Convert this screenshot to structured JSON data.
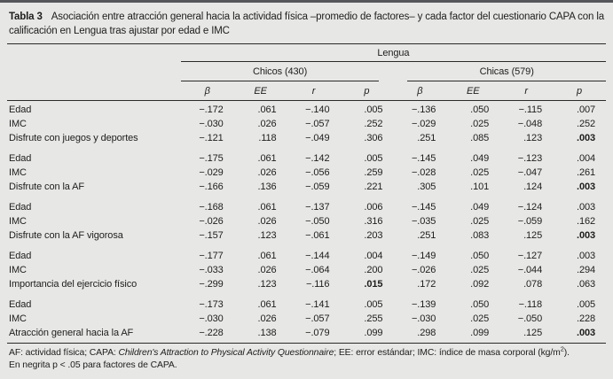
{
  "colors": {
    "page_background": "#e7e8e5",
    "top_bar": "#55565a",
    "rule": "#2a2a2a",
    "text": "#1d1d1d"
  },
  "table": {
    "id_label": "Tabla 3",
    "title": "Asociación entre atracción general hacia la actividad física –promedio de factores– y cada factor del cuestionario CAPA con la calificación en Lengua tras ajustar por edad e IMC",
    "span_header": "Lengua",
    "groups": [
      {
        "label": "Chicos (430)"
      },
      {
        "label": "Chicas (579)"
      }
    ],
    "col_headers": [
      "β",
      "EE",
      "r",
      "p",
      "β",
      "EE",
      "r",
      "p"
    ],
    "sections": [
      {
        "rows": [
          {
            "label": "Edad",
            "values": [
              "−.172",
              ".061",
              "−.140",
              ".005",
              "−.136",
              ".050",
              "−.115",
              ".007"
            ],
            "bold": []
          },
          {
            "label": "IMC",
            "values": [
              "−.030",
              ".026",
              "−.057",
              ".252",
              "−.029",
              ".025",
              "−.048",
              ".252"
            ],
            "bold": []
          },
          {
            "label": "Disfrute con juegos y deportes",
            "values": [
              "−.121",
              ".118",
              "−.049",
              ".306",
              ".251",
              ".085",
              ".123",
              ".003"
            ],
            "bold": [
              7
            ]
          }
        ]
      },
      {
        "rows": [
          {
            "label": "Edad",
            "values": [
              "−.175",
              ".061",
              "−.142",
              ".005",
              "−.145",
              ".049",
              "−.123",
              ".004"
            ],
            "bold": []
          },
          {
            "label": "IMC",
            "values": [
              "−.029",
              ".026",
              "−.056",
              ".259",
              "−.028",
              ".025",
              "−.047",
              ".261"
            ],
            "bold": []
          },
          {
            "label": "Disfrute con la AF",
            "values": [
              "−.166",
              ".136",
              "−.059",
              ".221",
              ".305",
              ".101",
              ".124",
              ".003"
            ],
            "bold": [
              7
            ]
          }
        ]
      },
      {
        "rows": [
          {
            "label": "Edad",
            "values": [
              "−.168",
              ".061",
              "−.137",
              ".006",
              "−.145",
              ".049",
              "−.124",
              ".003"
            ],
            "bold": []
          },
          {
            "label": "IMC",
            "values": [
              "−.026",
              ".026",
              "−.050",
              ".316",
              "−.035",
              ".025",
              "−.059",
              ".162"
            ],
            "bold": []
          },
          {
            "label": "Disfrute con la AF vigorosa",
            "values": [
              "−.157",
              ".123",
              "−.061",
              ".203",
              ".251",
              ".083",
              ".125",
              ".003"
            ],
            "bold": [
              7
            ]
          }
        ]
      },
      {
        "rows": [
          {
            "label": "Edad",
            "values": [
              "−.177",
              ".061",
              "−.144",
              ".004",
              "−.149",
              ".050",
              "−.127",
              ".003"
            ],
            "bold": []
          },
          {
            "label": "IMC",
            "values": [
              "−.033",
              ".026",
              "−.064",
              ".200",
              "−.026",
              ".025",
              "−.044",
              ".294"
            ],
            "bold": []
          },
          {
            "label": "Importancia del ejercicio físico",
            "values": [
              "−.299",
              ".123",
              "−.116",
              ".015",
              ".172",
              ".092",
              ".078",
              ".063"
            ],
            "bold": [
              3
            ]
          }
        ]
      },
      {
        "rows": [
          {
            "label": "Edad",
            "values": [
              "−.173",
              ".061",
              "−.141",
              ".005",
              "−.139",
              ".050",
              "−.118",
              ".005"
            ],
            "bold": []
          },
          {
            "label": "IMC",
            "values": [
              "−.030",
              ".026",
              "−.057",
              ".255",
              "−.030",
              ".025",
              "−.050",
              ".228"
            ],
            "bold": []
          },
          {
            "label": "Atracción general hacia la AF",
            "values": [
              "−.228",
              ".138",
              "−.079",
              ".099",
              ".298",
              ".099",
              ".125",
              ".003"
            ],
            "bold": [
              7
            ]
          }
        ]
      }
    ],
    "footnotes": {
      "abbr_pre": "AF: actividad física; CAPA: ",
      "abbr_italic": "Children's Attraction to Physical Activity Questionnaire",
      "abbr_mid": "; EE: error estándar; IMC: índice de masa corporal (kg/m",
      "abbr_sup": "2",
      "abbr_end": ").",
      "bold_note": "En negrita p < .05 para factores de CAPA."
    }
  }
}
